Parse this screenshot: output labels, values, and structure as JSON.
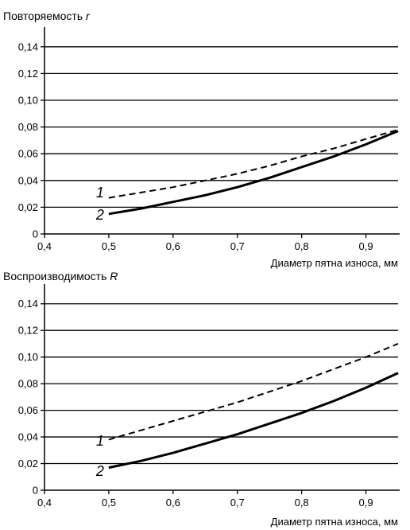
{
  "chart_data": [
    {
      "type": "line",
      "title_text": "Повторяемость ",
      "title_symbol": "r",
      "xlabel": "Диаметр пятна износа, мм",
      "ylabel": "",
      "xlim": [
        0.4,
        0.95
      ],
      "ylim": [
        0,
        0.15
      ],
      "x_ticks": [
        "0,4",
        "0,5",
        "0,6",
        "0,7",
        "0,8",
        "0,9"
      ],
      "y_ticks": [
        "0",
        "0,02",
        "0,04",
        "0,06",
        "0,08",
        "0,10",
        "0,12",
        "0,14"
      ],
      "grid": "horizontal",
      "series": [
        {
          "name": "1",
          "style": "dashed",
          "x": [
            0.5,
            0.55,
            0.6,
            0.65,
            0.7,
            0.75,
            0.8,
            0.85,
            0.9,
            0.95
          ],
          "y": [
            0.027,
            0.031,
            0.035,
            0.04,
            0.045,
            0.051,
            0.058,
            0.064,
            0.071,
            0.078
          ]
        },
        {
          "name": "2",
          "style": "solid",
          "x": [
            0.5,
            0.55,
            0.6,
            0.65,
            0.7,
            0.75,
            0.8,
            0.85,
            0.9,
            0.95
          ],
          "y": [
            0.015,
            0.019,
            0.024,
            0.029,
            0.035,
            0.042,
            0.05,
            0.058,
            0.067,
            0.077
          ]
        }
      ]
    },
    {
      "type": "line",
      "title_text": "Воспроизводимость ",
      "title_symbol": "R",
      "xlabel": "Диаметр пятна износа, мм",
      "ylabel": "",
      "xlim": [
        0.4,
        0.95
      ],
      "ylim": [
        0,
        0.15
      ],
      "x_ticks": [
        "0,4",
        "0,5",
        "0,6",
        "0,7",
        "0,8",
        "0,9"
      ],
      "y_ticks": [
        "0",
        "0,02",
        "0,04",
        "0,06",
        "0,08",
        "0,10",
        "0,12",
        "0,14"
      ],
      "grid": "horizontal",
      "series": [
        {
          "name": "1",
          "style": "dashed",
          "x": [
            0.5,
            0.55,
            0.6,
            0.65,
            0.7,
            0.75,
            0.8,
            0.85,
            0.9,
            0.95
          ],
          "y": [
            0.038,
            0.045,
            0.052,
            0.059,
            0.066,
            0.074,
            0.082,
            0.091,
            0.1,
            0.11
          ]
        },
        {
          "name": "2",
          "style": "solid",
          "x": [
            0.5,
            0.55,
            0.6,
            0.65,
            0.7,
            0.75,
            0.8,
            0.85,
            0.9,
            0.95
          ],
          "y": [
            0.017,
            0.022,
            0.028,
            0.035,
            0.042,
            0.05,
            0.058,
            0.067,
            0.077,
            0.088
          ]
        }
      ]
    }
  ]
}
